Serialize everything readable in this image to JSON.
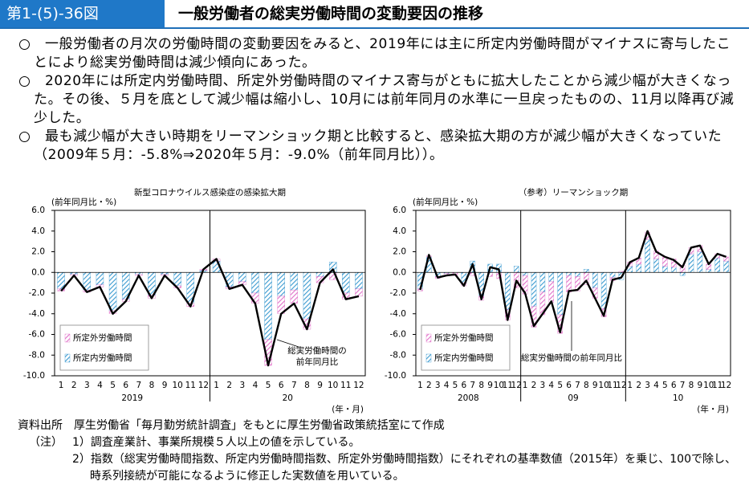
{
  "header": {
    "number": "第1-(5)-36図",
    "title": "一般労働者の総実労働時間の変動要因の推移"
  },
  "bullets": [
    "一般労働者の月次の労働時間の変動要因をみると、2019年には主に所定内労働時間がマイナスに寄与したことにより総実労働時間は減少傾向にあった。",
    "2020年には所定内労働時間、所定外労働時間のマイナス寄与がともに拡大したことから減少幅が大きくなった。その後、５月を底として減少幅は縮小し、10月には前年同月の水準に一旦戻ったものの、11月以降再び減少した。",
    "最も減少幅が大きい時期をリーマンショック期と比較すると、感染拡大期の方が減少幅が大きくなっていた（2009年５月：-5.8%⇒2020年５月：-9.0%（前年同月比））。"
  ],
  "chart_data": [
    {
      "type": "bar",
      "title": "新型コロナウイルス感染症の感染拡大期",
      "y_label": "(前年同月比・%)",
      "x_label": "(年・月)",
      "categories": [
        "1",
        "2",
        "3",
        "4",
        "5",
        "6",
        "7",
        "8",
        "9",
        "10",
        "11",
        "12",
        "1",
        "2",
        "3",
        "4",
        "5",
        "6",
        "7",
        "8",
        "9",
        "10",
        "11",
        "12"
      ],
      "groups": [
        "2019",
        "20"
      ],
      "ylim": [
        -10,
        6
      ],
      "yticks": [
        {
          "value": 6,
          "label": "6.0"
        },
        {
          "value": 4,
          "label": "4.0"
        },
        {
          "value": 2,
          "label": "2.0"
        },
        {
          "value": 0,
          "label": "0.0"
        },
        {
          "value": -2,
          "label": "-2.0"
        },
        {
          "value": -4,
          "label": "-4.0"
        },
        {
          "value": -6,
          "label": "-6.0"
        },
        {
          "value": -8,
          "label": "-8.0"
        },
        {
          "value": -10,
          "label": "-10.0"
        }
      ],
      "legend": "lower left",
      "series": [
        {
          "name": "所定外労働時間",
          "type": "bar",
          "color": "#e070c8",
          "values": [
            -0.2,
            -0.1,
            -0.2,
            -0.2,
            -0.3,
            -0.2,
            -0.1,
            -0.3,
            -0.1,
            -0.2,
            -0.3,
            0.1,
            0.2,
            -0.2,
            -0.3,
            -1.0,
            -2.5,
            -1.7,
            -1.3,
            -1.0,
            -0.6,
            -0.7,
            -0.6,
            -0.7
          ]
        },
        {
          "name": "所定内労働時間",
          "type": "bar",
          "color": "#3a9ad0",
          "values": [
            -1.6,
            -0.2,
            -1.7,
            -1.2,
            -3.7,
            -2.6,
            -0.2,
            -2.2,
            -0.2,
            -1.3,
            -3.0,
            0.2,
            1.1,
            -1.4,
            -0.9,
            -2.0,
            -6.5,
            -2.3,
            -1.7,
            -4.5,
            -0.4,
            1.0,
            -2.0,
            -1.6
          ]
        },
        {
          "type": "line",
          "color": "#000000",
          "annotation": [
            "総実労働時間の",
            "前年同月比"
          ],
          "values": [
            -1.8,
            -0.3,
            -1.9,
            -1.4,
            -4.0,
            -2.8,
            -0.3,
            -2.5,
            -0.3,
            -1.5,
            -3.3,
            0.3,
            1.3,
            -1.6,
            -1.2,
            -3.0,
            -9.0,
            -4.0,
            -3.0,
            -5.5,
            -1.0,
            0.3,
            -2.6,
            -2.3
          ]
        }
      ]
    },
    {
      "type": "bar",
      "title": "（参考）リーマンショック期",
      "y_label": "(前年同月比・%)",
      "x_label": "(年・月)",
      "categories": [
        "1",
        "2",
        "3",
        "4",
        "5",
        "6",
        "7",
        "8",
        "9",
        "10",
        "11",
        "12",
        "1",
        "2",
        "3",
        "4",
        "5",
        "6",
        "7",
        "8",
        "9",
        "10",
        "11",
        "12",
        "1",
        "2",
        "3",
        "4",
        "5",
        "6",
        "7",
        "8",
        "9",
        "10",
        "11",
        "12"
      ],
      "groups": [
        "2008",
        "09",
        "10"
      ],
      "ylim": [
        -10,
        6
      ],
      "yticks": [
        {
          "value": 6,
          "label": "6.0"
        },
        {
          "value": 4,
          "label": "4.0"
        },
        {
          "value": 2,
          "label": "2.0"
        },
        {
          "value": 0,
          "label": "0.0"
        },
        {
          "value": -2,
          "label": "-2.0"
        },
        {
          "value": -4,
          "label": "-4.0"
        },
        {
          "value": -6,
          "label": "-6.0"
        },
        {
          "value": -8,
          "label": "-8.0"
        },
        {
          "value": -10,
          "label": "-10.0"
        }
      ],
      "legend": "lower left",
      "series": [
        {
          "name": "所定外労働時間",
          "type": "bar",
          "color": "#e070c8",
          "values": [
            -0.2,
            0.1,
            -0.2,
            -0.2,
            -0.3,
            -0.3,
            -0.3,
            -0.4,
            -0.4,
            -0.6,
            -1.0,
            -1.5,
            -1.8,
            -2.0,
            -2.2,
            -2.0,
            -1.8,
            -1.6,
            -1.4,
            -1.2,
            -1.0,
            -0.8,
            -0.3,
            0.1,
            0.4,
            0.6,
            0.7,
            0.8,
            0.9,
            0.8,
            0.7,
            0.6,
            0.6,
            0.5,
            0.4,
            0.4
          ]
        },
        {
          "name": "所定内労働時間",
          "type": "bar",
          "color": "#3a9ad0",
          "values": [
            -1.6,
            1.5,
            -0.4,
            -0.1,
            0.0,
            -1.0,
            1.1,
            -2.3,
            0.8,
            0.8,
            -3.6,
            0.6,
            -0.3,
            -3.3,
            -1.9,
            -0.9,
            -4.1,
            -0.3,
            -0.4,
            0.3,
            -1.5,
            -3.5,
            -0.5,
            -0.7,
            0.6,
            0.8,
            3.2,
            1.3,
            0.6,
            0.5,
            -0.3,
            1.8,
            2.0,
            0.3,
            1.4,
            1.1
          ]
        },
        {
          "type": "line",
          "color": "#000000",
          "annotation": [
            "総実労働時間の前年同月比"
          ],
          "values": [
            -1.7,
            1.7,
            -0.5,
            -0.3,
            -0.2,
            -1.3,
            0.8,
            -2.6,
            0.5,
            0.3,
            -4.6,
            -0.8,
            -2.0,
            -5.2,
            -4.0,
            -2.8,
            -5.8,
            -1.8,
            -1.7,
            -0.8,
            -2.5,
            -4.2,
            -0.7,
            -0.5,
            1.0,
            1.4,
            4.0,
            2.0,
            1.5,
            1.2,
            0.5,
            2.4,
            2.6,
            0.8,
            1.8,
            1.5
          ]
        }
      ]
    }
  ],
  "notes": {
    "source_label": "資料出所",
    "source": "厚生労働省「毎月勤労統計調査」をもとに厚生労働省政策統括室にて作成",
    "notes_label": "（注）",
    "items": [
      "1）調査産業計、事業所規模５人以上の値を示している。",
      "2）指数（総実労働時間指数、所定内労働時間指数、所定外労働時間指数）にそれぞれの基準数値（2015年）を乗じ、100で除し、時系列接続が可能になるように修正した実数値を用いている。"
    ]
  }
}
